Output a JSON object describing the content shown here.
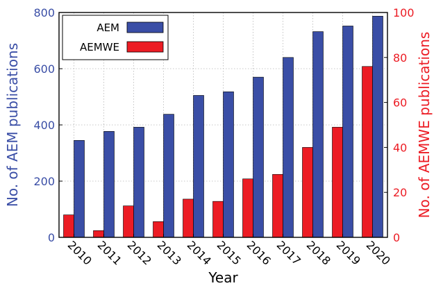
{
  "chart_data": {
    "type": "bar",
    "categories": [
      "2010",
      "2011",
      "2012",
      "2013",
      "2014",
      "2015",
      "2016",
      "2017",
      "2018",
      "2019",
      "2020"
    ],
    "series": [
      {
        "name": "AEM",
        "axis": "left",
        "color": "#3a4ea6",
        "values": [
          345,
          377,
          392,
          438,
          505,
          518,
          570,
          640,
          732,
          752,
          787
        ]
      },
      {
        "name": "AEMWE",
        "axis": "right",
        "color": "#ec1c24",
        "values": [
          10,
          3,
          14,
          7,
          17,
          16,
          26,
          28,
          40,
          49,
          76
        ]
      }
    ],
    "title": "",
    "xlabel": "Year",
    "ylabel_left": "No. of AEM publications",
    "ylabel_right": "No. of AEMWE publications",
    "ylim_left": [
      0,
      800
    ],
    "ylim_right": [
      0,
      100
    ],
    "yticks_left": [
      "0",
      "200",
      "400",
      "600",
      "800"
    ],
    "yticks_right": [
      "0",
      "20",
      "40",
      "60",
      "80",
      "100"
    ],
    "grid": true,
    "legend_position": "top-left",
    "left_axis_color": "#3a4ea6",
    "right_axis_color": "#ec1c24"
  }
}
